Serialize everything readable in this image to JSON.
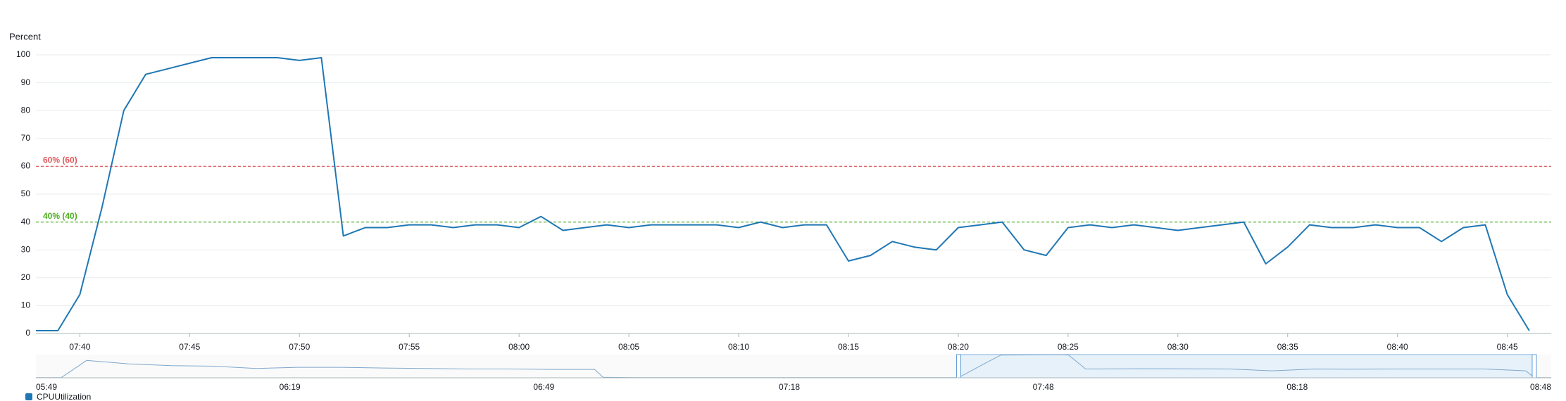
{
  "chart_data": {
    "type": "line",
    "y_label": "Percent",
    "x": [
      "07:38",
      "07:39",
      "07:40",
      "07:41",
      "07:42",
      "07:43",
      "07:44",
      "07:45",
      "07:46",
      "07:47",
      "07:48",
      "07:49",
      "07:50",
      "07:51",
      "07:52",
      "07:53",
      "07:54",
      "07:55",
      "07:56",
      "07:57",
      "07:58",
      "07:59",
      "08:00",
      "08:01",
      "08:02",
      "08:03",
      "08:04",
      "08:05",
      "08:06",
      "08:07",
      "08:08",
      "08:09",
      "08:10",
      "08:11",
      "08:12",
      "08:13",
      "08:14",
      "08:15",
      "08:16",
      "08:17",
      "08:18",
      "08:19",
      "08:20",
      "08:21",
      "08:22",
      "08:23",
      "08:24",
      "08:25",
      "08:26",
      "08:27",
      "08:28",
      "08:29",
      "08:30",
      "08:31",
      "08:32",
      "08:33",
      "08:34",
      "08:35",
      "08:36",
      "08:37",
      "08:38",
      "08:39",
      "08:40",
      "08:41",
      "08:42",
      "08:43",
      "08:44",
      "08:45",
      "08:46"
    ],
    "series": [
      {
        "name": "CPUUtilization",
        "color": "#1f77b4",
        "values": [
          1,
          1,
          14,
          45,
          80,
          93,
          95,
          97,
          99,
          99,
          99,
          99,
          98,
          99,
          35,
          38,
          38,
          39,
          39,
          38,
          39,
          39,
          38,
          42,
          37,
          38,
          39,
          38,
          39,
          39,
          39,
          39,
          38,
          40,
          38,
          39,
          39,
          26,
          28,
          33,
          31,
          30,
          38,
          39,
          40,
          30,
          28,
          38,
          39,
          38,
          39,
          38,
          37,
          38,
          39,
          40,
          25,
          31,
          39,
          38,
          38,
          39,
          38,
          38,
          33,
          38,
          39,
          14,
          1
        ]
      }
    ],
    "xlim": [
      "07:38",
      "08:47"
    ],
    "xticks": [
      "07:40",
      "07:45",
      "07:50",
      "07:55",
      "08:00",
      "08:05",
      "08:10",
      "08:15",
      "08:20",
      "08:25",
      "08:30",
      "08:35",
      "08:40",
      "08:45"
    ],
    "ylim": [
      0,
      100
    ],
    "yticks": [
      0,
      10,
      20,
      30,
      40,
      50,
      60,
      70,
      80,
      90,
      100
    ],
    "grid": true,
    "annotations": [
      {
        "label": "60% (60)",
        "value": 60,
        "color": "#e0575b"
      },
      {
        "label": "40% (40)",
        "value": 40,
        "color": "#4caf1f"
      }
    ],
    "overview": {
      "x": [
        "05:49",
        "05:52",
        "05:55",
        "06:00",
        "06:05",
        "06:10",
        "06:15",
        "06:20",
        "06:25",
        "06:30",
        "06:35",
        "06:40",
        "06:45",
        "06:50",
        "06:55",
        "06:56",
        "07:00",
        "07:10",
        "07:20",
        "07:30",
        "07:38",
        "07:41",
        "07:43",
        "07:50",
        "07:51",
        "07:53",
        "08:00",
        "08:10",
        "08:15",
        "08:20",
        "08:25",
        "08:30",
        "08:35",
        "08:40",
        "08:45",
        "08:46",
        "08:48"
      ],
      "values": [
        1,
        1,
        75,
        60,
        52,
        50,
        40,
        45,
        45,
        42,
        40,
        38,
        38,
        36,
        36,
        2,
        1,
        1,
        1,
        1,
        1,
        60,
        98,
        99,
        98,
        38,
        39,
        38,
        30,
        38,
        37,
        38,
        38,
        38,
        30,
        1,
        1
      ],
      "xlim": [
        "05:49",
        "08:48"
      ],
      "xticks": [
        "05:49",
        "06:19",
        "06:49",
        "07:18",
        "07:48",
        "08:18",
        "08:48"
      ],
      "ylim": [
        0,
        100
      ]
    }
  }
}
